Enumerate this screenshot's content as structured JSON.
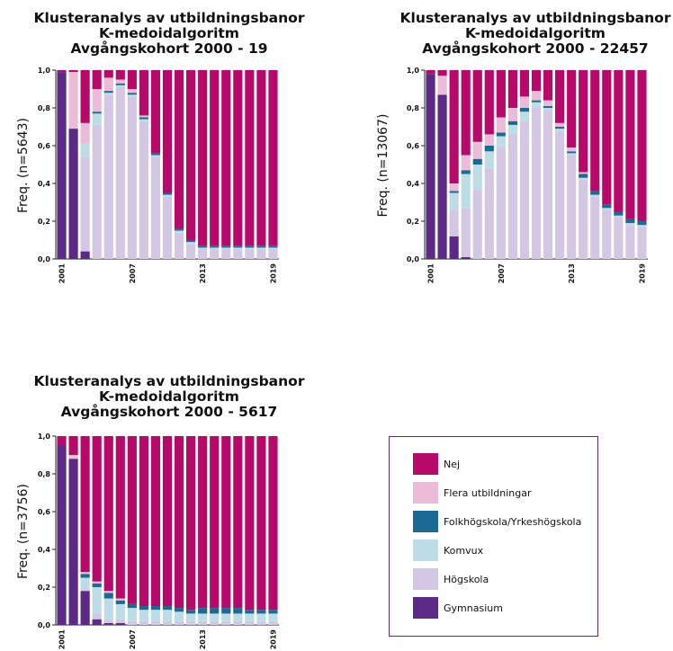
{
  "colors": {
    "Gymnasium": "#5b2a86",
    "Högskola": "#d4c7e4",
    "Komvux": "#bcdde6",
    "Folkhögskola/Yrkeshögskola": "#1b6a94",
    "Flera utbildningar": "#ebbcd8",
    "Nej": "#b7096a"
  },
  "legend": {
    "items": [
      {
        "label": "Nej",
        "key": "Nej"
      },
      {
        "label": "Flera utbildningar",
        "key": "Flera utbildningar"
      },
      {
        "label": "Folkhögskola/Yrkeshögskola",
        "key": "Folkhögskola/Yrkeshögskola"
      },
      {
        "label": "Komvux",
        "key": "Komvux"
      },
      {
        "label": "Högskola",
        "key": "Högskola"
      },
      {
        "label": "Gymnasium",
        "key": "Gymnasium"
      }
    ]
  },
  "chart_data": [
    {
      "type": "bar",
      "stacked": true,
      "title": [
        "Klusteranalys av utbildningsbanor",
        "K-medoidalgoritm",
        "Avgångskohort 2000 - 19"
      ],
      "ylabel": "Freq. (n=5643)",
      "ylim": [
        0,
        1
      ],
      "yticks": [
        "0,0",
        "0,2",
        "0,4",
        "0,6",
        "0,8",
        "1,0"
      ],
      "xtick_labels": [
        {
          "i": 0,
          "label": "2001"
        },
        {
          "i": 6,
          "label": "2007"
        },
        {
          "i": 12,
          "label": "2013"
        },
        {
          "i": 18,
          "label": "2019"
        }
      ],
      "categories": [
        "2001",
        "2002",
        "2003",
        "2004",
        "2005",
        "2006",
        "2007",
        "2008",
        "2009",
        "2010",
        "2011",
        "2012",
        "2013",
        "2014",
        "2015",
        "2016",
        "2017",
        "2018",
        "2019"
      ],
      "series": [
        {
          "name": "Gymnasium",
          "values": [
            0.99,
            0.69,
            0.04,
            0,
            0,
            0,
            0,
            0,
            0,
            0,
            0,
            0,
            0,
            0,
            0,
            0,
            0,
            0,
            0
          ]
        },
        {
          "name": "Högskola",
          "values": [
            0,
            0,
            0.5,
            0.71,
            0.87,
            0.91,
            0.86,
            0.73,
            0.54,
            0.33,
            0.14,
            0.08,
            0.05,
            0.05,
            0.05,
            0.05,
            0.05,
            0.05,
            0.05
          ]
        },
        {
          "name": "Komvux",
          "values": [
            0,
            0,
            0.07,
            0.06,
            0.01,
            0.01,
            0.01,
            0.01,
            0.01,
            0.01,
            0.01,
            0.01,
            0.01,
            0.01,
            0.01,
            0.01,
            0.01,
            0.01,
            0.01
          ]
        },
        {
          "name": "Folkhögskola/Yrkeshögskola",
          "values": [
            0,
            0,
            0,
            0.01,
            0.01,
            0.01,
            0.01,
            0.01,
            0.01,
            0.01,
            0.01,
            0.01,
            0.01,
            0.01,
            0.01,
            0.01,
            0.01,
            0.01,
            0.01
          ]
        },
        {
          "name": "Flera utbildningar",
          "values": [
            0,
            0.3,
            0.11,
            0.12,
            0.07,
            0.02,
            0.02,
            0.01,
            0,
            0,
            0,
            0,
            0,
            0,
            0,
            0,
            0,
            0,
            0
          ]
        },
        {
          "name": "Nej",
          "values": [
            0.01,
            0.01,
            0.28,
            0.1,
            0.04,
            0.05,
            0.1,
            0.24,
            0.44,
            0.65,
            0.84,
            0.9,
            0.93,
            0.93,
            0.93,
            0.93,
            0.93,
            0.93,
            0.93
          ]
        }
      ]
    },
    {
      "type": "bar",
      "stacked": true,
      "title": [
        "Klusteranalys av utbildningsbanor",
        "K-medoidalgoritm",
        "Avgångskohort 2000 - 22457"
      ],
      "ylabel": "Freq. (n=13067)",
      "ylim": [
        0,
        1
      ],
      "yticks": [
        "0,0",
        "0,2",
        "0,4",
        "0,6",
        "0,8",
        "1,0"
      ],
      "xtick_labels": [
        {
          "i": 0,
          "label": "2001"
        },
        {
          "i": 6,
          "label": "2007"
        },
        {
          "i": 12,
          "label": "2013"
        },
        {
          "i": 18,
          "label": "2019"
        }
      ],
      "categories": [
        "2001",
        "2002",
        "2003",
        "2004",
        "2005",
        "2006",
        "2007",
        "2008",
        "2009",
        "2010",
        "2011",
        "2012",
        "2013",
        "2014",
        "2015",
        "2016",
        "2017",
        "2018",
        "2019"
      ],
      "series": [
        {
          "name": "Gymnasium",
          "values": [
            0.98,
            0.87,
            0.12,
            0.01,
            0,
            0,
            0,
            0,
            0,
            0,
            0,
            0,
            0,
            0,
            0,
            0,
            0,
            0,
            0
          ]
        },
        {
          "name": "Högskola",
          "values": [
            0,
            0,
            0.14,
            0.26,
            0.37,
            0.48,
            0.59,
            0.66,
            0.73,
            0.8,
            0.79,
            0.68,
            0.55,
            0.42,
            0.33,
            0.26,
            0.22,
            0.18,
            0.17
          ]
        },
        {
          "name": "Komvux",
          "values": [
            0,
            0,
            0.09,
            0.18,
            0.13,
            0.09,
            0.06,
            0.05,
            0.05,
            0.03,
            0.01,
            0.01,
            0.01,
            0.01,
            0.01,
            0.01,
            0.01,
            0.01,
            0.01
          ]
        },
        {
          "name": "Folkhögskola/Yrkeshögskola",
          "values": [
            0,
            0,
            0.01,
            0.02,
            0.03,
            0.03,
            0.02,
            0.02,
            0.02,
            0.01,
            0.01,
            0.01,
            0.01,
            0.02,
            0.02,
            0.02,
            0.02,
            0.02,
            0.02
          ]
        },
        {
          "name": "Flera utbildningar",
          "values": [
            0,
            0.1,
            0.04,
            0.08,
            0.09,
            0.06,
            0.08,
            0.07,
            0.06,
            0.05,
            0.03,
            0.02,
            0.02,
            0.01,
            0,
            0,
            0,
            0,
            0
          ]
        },
        {
          "name": "Nej",
          "values": [
            0.02,
            0.03,
            0.6,
            0.45,
            0.38,
            0.34,
            0.25,
            0.2,
            0.14,
            0.11,
            0.16,
            0.28,
            0.41,
            0.54,
            0.64,
            0.71,
            0.75,
            0.79,
            0.8
          ]
        }
      ]
    },
    {
      "type": "bar",
      "stacked": true,
      "title": [
        "Klusteranalys av utbildningsbanor",
        "K-medoidalgoritm",
        "Avgångskohort 2000 - 5617"
      ],
      "ylabel": "Freq. (n=3756)",
      "ylim": [
        0,
        1
      ],
      "yticks": [
        "0,0",
        "0,2",
        "0,4",
        "0,6",
        "0,8",
        "1,0"
      ],
      "xtick_labels": [
        {
          "i": 0,
          "label": "2001"
        },
        {
          "i": 6,
          "label": "2007"
        },
        {
          "i": 12,
          "label": "2013"
        },
        {
          "i": 18,
          "label": "2019"
        }
      ],
      "categories": [
        "2001",
        "2002",
        "2003",
        "2004",
        "2005",
        "2006",
        "2007",
        "2008",
        "2009",
        "2010",
        "2011",
        "2012",
        "2013",
        "2014",
        "2015",
        "2016",
        "2017",
        "2018",
        "2019"
      ],
      "series": [
        {
          "name": "Gymnasium",
          "values": [
            0.95,
            0.88,
            0.18,
            0.03,
            0.01,
            0.01,
            0,
            0,
            0,
            0,
            0,
            0,
            0,
            0,
            0,
            0,
            0,
            0,
            0
          ]
        },
        {
          "name": "Högskola",
          "values": [
            0,
            0,
            0.01,
            0.03,
            0.02,
            0.02,
            0.02,
            0.02,
            0.02,
            0.02,
            0.02,
            0.02,
            0.02,
            0.02,
            0.02,
            0.02,
            0.02,
            0.02,
            0.02
          ]
        },
        {
          "name": "Komvux",
          "values": [
            0,
            0,
            0.06,
            0.14,
            0.11,
            0.08,
            0.07,
            0.06,
            0.06,
            0.06,
            0.05,
            0.04,
            0.04,
            0.04,
            0.04,
            0.04,
            0.04,
            0.04,
            0.04
          ]
        },
        {
          "name": "Folkhögskola/Yrkeshögskola",
          "values": [
            0,
            0,
            0.02,
            0.02,
            0.03,
            0.02,
            0.02,
            0.02,
            0.02,
            0.02,
            0.02,
            0.02,
            0.03,
            0.03,
            0.03,
            0.03,
            0.02,
            0.02,
            0.02
          ]
        },
        {
          "name": "Flera utbildningar",
          "values": [
            0,
            0.02,
            0.01,
            0.01,
            0.01,
            0.01,
            0,
            0,
            0,
            0,
            0,
            0,
            0,
            0,
            0,
            0,
            0,
            0,
            0
          ]
        },
        {
          "name": "Nej",
          "values": [
            0.05,
            0.1,
            0.72,
            0.77,
            0.82,
            0.86,
            0.89,
            0.9,
            0.9,
            0.9,
            0.91,
            0.92,
            0.91,
            0.91,
            0.91,
            0.91,
            0.92,
            0.92,
            0.92
          ]
        }
      ]
    }
  ]
}
